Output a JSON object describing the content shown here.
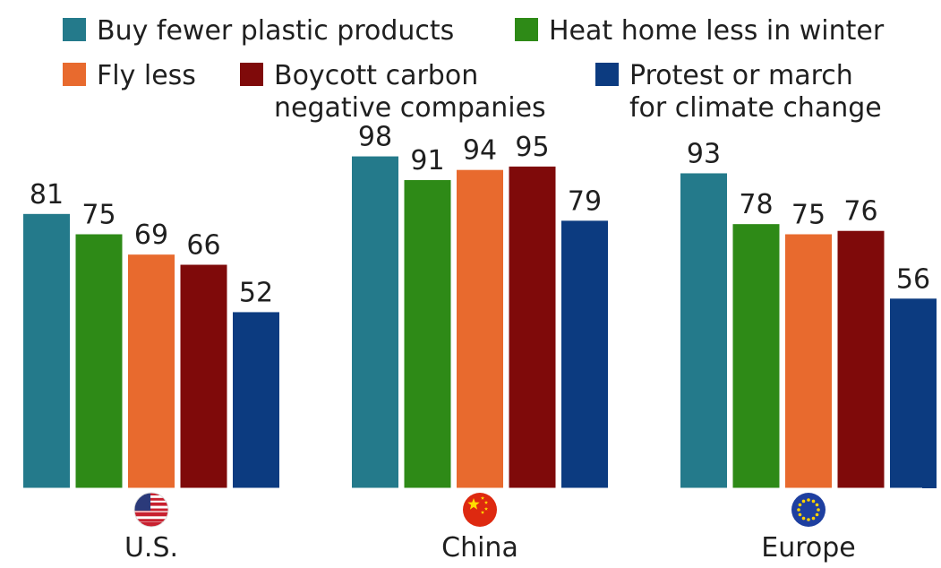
{
  "chart_data": {
    "type": "bar",
    "categories": [
      "U.S.",
      "China",
      "Europe"
    ],
    "series": [
      {
        "name": "Buy fewer plastic products",
        "color": "#247a8b",
        "values": [
          81,
          98,
          93
        ]
      },
      {
        "name": "Heat home less in winter",
        "color": "#2e8a17",
        "values": [
          75,
          91,
          78
        ]
      },
      {
        "name": "Fly less",
        "color": "#e86a2e",
        "values": [
          69,
          94,
          75
        ]
      },
      {
        "name": "Boycott carbon negative companies",
        "color": "#7f0a0a",
        "values": [
          66,
          95,
          76
        ]
      },
      {
        "name": "Protest or march for climate change",
        "color": "#0c3b80",
        "values": [
          52,
          79,
          56
        ]
      }
    ],
    "legend": {
      "placement": "top",
      "rows": [
        [
          {
            "series": 0,
            "lines": [
              "Buy fewer plastic products"
            ]
          },
          {
            "series": 1,
            "lines": [
              "Heat home less in winter"
            ]
          }
        ],
        [
          {
            "series": 2,
            "lines": [
              "Fly less"
            ]
          },
          {
            "series": 3,
            "lines": [
              "Boycott carbon",
              "negative companies"
            ]
          },
          {
            "series": 4,
            "lines": [
              "Protest or march",
              "for climate change"
            ]
          }
        ]
      ]
    },
    "group_icons": [
      "us-flag-icon",
      "china-flag-icon",
      "eu-flag-icon"
    ],
    "ylim": [
      0,
      100
    ],
    "grid": false,
    "data_labels": true,
    "title": "",
    "xlabel": "",
    "ylabel": ""
  }
}
